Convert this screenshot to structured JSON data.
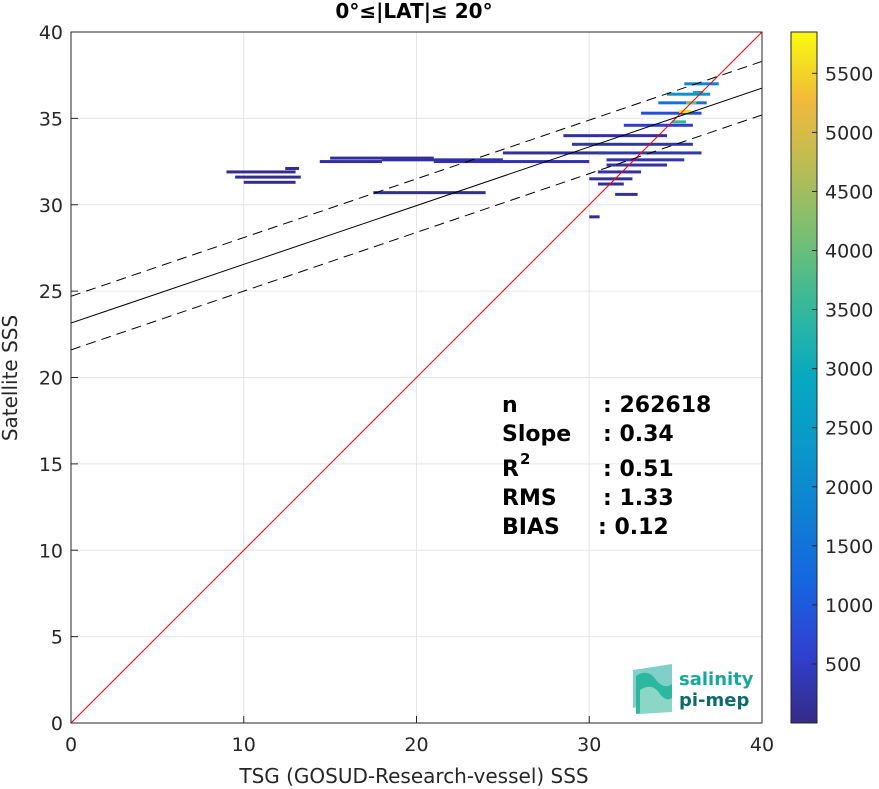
{
  "chart_data": {
    "type": "heatmap",
    "title": "0°≤|LAT|≤ 20°",
    "xlabel": "TSG (GOSUD-Research-vessel) SSS",
    "ylabel": "Satellite SSS",
    "xlim": [
      0,
      40
    ],
    "ylim": [
      0,
      40
    ],
    "x_ticks": [
      "0",
      "10",
      "20",
      "30",
      "40"
    ],
    "y_ticks": [
      "0",
      "5",
      "10",
      "15",
      "20",
      "25",
      "30",
      "35",
      "40"
    ],
    "grid": true,
    "colorbar": {
      "range": [
        0,
        5850
      ],
      "ticks": [
        500,
        1000,
        1500,
        2000,
        2500,
        3000,
        3500,
        4000,
        4500,
        5000,
        5500
      ],
      "tick_labels": [
        "500",
        "1000",
        "1500",
        "2000",
        "2500",
        "3000",
        "3500",
        "4000",
        "4500",
        "5000",
        "5500"
      ],
      "colormap": "parula"
    },
    "lines": [
      {
        "kind": "identity",
        "color": "#ff0000",
        "x": [
          0,
          40
        ],
        "y": [
          0,
          40
        ]
      },
      {
        "kind": "regression",
        "color": "#000000",
        "style": "solid",
        "slope": 0.34,
        "intercept": 23.15
      },
      {
        "kind": "regression-upper",
        "color": "#000000",
        "style": "dashed",
        "slope": 0.34,
        "intercept": 24.7
      },
      {
        "kind": "regression-lower",
        "color": "#000000",
        "style": "dashed",
        "slope": 0.34,
        "intercept": 21.6
      }
    ],
    "density_cells": [
      {
        "x0": 9.0,
        "x1": 13.0,
        "y": 31.9,
        "v": 60
      },
      {
        "x0": 9.5,
        "x1": 13.3,
        "y": 31.6,
        "v": 80
      },
      {
        "x0": 10.0,
        "x1": 13.0,
        "y": 31.3,
        "v": 70
      },
      {
        "x0": 12.4,
        "x1": 13.2,
        "y": 32.1,
        "v": 60
      },
      {
        "x0": 14.4,
        "x1": 18.0,
        "y": 32.5,
        "v": 120
      },
      {
        "x0": 15.0,
        "x1": 21.0,
        "y": 32.7,
        "v": 140
      },
      {
        "x0": 18.0,
        "x1": 25.0,
        "y": 32.6,
        "v": 200
      },
      {
        "x0": 21.0,
        "x1": 30.0,
        "y": 32.5,
        "v": 250
      },
      {
        "x0": 17.5,
        "x1": 24.0,
        "y": 30.7,
        "v": 100
      },
      {
        "x0": 25.0,
        "x1": 31.0,
        "y": 33.0,
        "v": 150
      },
      {
        "x0": 28.5,
        "x1": 34.5,
        "y": 34.0,
        "v": 180
      },
      {
        "x0": 29.0,
        "x1": 36.0,
        "y": 33.5,
        "v": 300
      },
      {
        "x0": 30.5,
        "x1": 36.5,
        "y": 33.0,
        "v": 350
      },
      {
        "x0": 31.0,
        "x1": 35.5,
        "y": 32.6,
        "v": 300
      },
      {
        "x0": 31.0,
        "x1": 34.5,
        "y": 32.3,
        "v": 250
      },
      {
        "x0": 30.5,
        "x1": 33.0,
        "y": 31.9,
        "v": 200
      },
      {
        "x0": 30.0,
        "x1": 32.5,
        "y": 31.5,
        "v": 180
      },
      {
        "x0": 30.5,
        "x1": 32.0,
        "y": 31.2,
        "v": 150
      },
      {
        "x0": 31.5,
        "x1": 32.8,
        "y": 30.6,
        "v": 120
      },
      {
        "x0": 30.0,
        "x1": 30.6,
        "y": 29.3,
        "v": 80
      },
      {
        "x0": 32.0,
        "x1": 36.0,
        "y": 34.6,
        "v": 500
      },
      {
        "x0": 33.0,
        "x1": 36.5,
        "y": 35.3,
        "v": 800
      },
      {
        "x0": 34.0,
        "x1": 36.8,
        "y": 35.9,
        "v": 1500
      },
      {
        "x0": 34.5,
        "x1": 37.0,
        "y": 36.4,
        "v": 2200
      },
      {
        "x0": 35.5,
        "x1": 37.5,
        "y": 37.0,
        "v": 1800
      },
      {
        "x0": 34.8,
        "x1": 35.6,
        "y": 34.8,
        "v": 3500
      },
      {
        "x0": 35.2,
        "x1": 35.9,
        "y": 35.4,
        "v": 5600
      },
      {
        "x0": 35.6,
        "x1": 36.2,
        "y": 35.9,
        "v": 4200
      },
      {
        "x0": 36.0,
        "x1": 36.6,
        "y": 36.5,
        "v": 2800
      }
    ]
  },
  "stats": {
    "n_label": "n",
    "n_value": ": 262618",
    "slope_label": "Slope",
    "slope_value": ": 0.34",
    "r2_label": "R",
    "r2_sup": "2",
    "r2_value": ": 0.51",
    "rms_label": "RMS",
    "rms_value": ": 1.33",
    "bias_label": "BIAS",
    "bias_value": ": 0.12"
  },
  "logo": {
    "line1": "salinity",
    "line2": "pi-mep",
    "color1": "#17a89a",
    "color2": "#0f6b6b"
  }
}
